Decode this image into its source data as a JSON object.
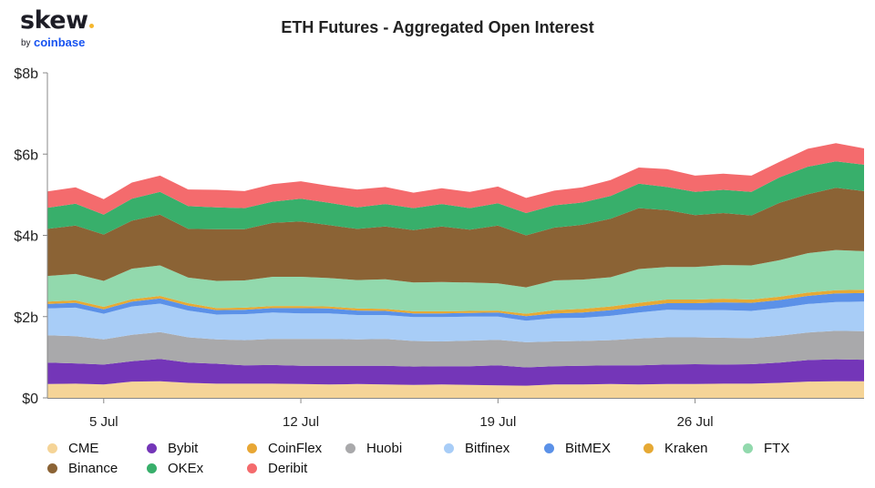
{
  "logo": {
    "brand": "skew",
    "by": "by",
    "partner": "coinbase"
  },
  "chart_data": {
    "type": "area",
    "stacked": true,
    "title": "ETH Futures - Aggregated Open Interest",
    "xlabel": "",
    "ylabel": "",
    "x_start": "2021-07-03",
    "x_ticks": [
      {
        "date": "2021-07-05",
        "label": "5 Jul"
      },
      {
        "date": "2021-07-12",
        "label": "12 Jul"
      },
      {
        "date": "2021-07-19",
        "label": "19 Jul"
      },
      {
        "date": "2021-07-26",
        "label": "26 Jul"
      }
    ],
    "y_ticks": [
      {
        "value": 0,
        "label": "$0"
      },
      {
        "value": 2,
        "label": "$2b"
      },
      {
        "value": 4,
        "label": "$4b"
      },
      {
        "value": 6,
        "label": "$6b"
      },
      {
        "value": 8,
        "label": "$8b"
      }
    ],
    "ylim": [
      0,
      8
    ],
    "y_unit": "USD billions",
    "grid": false,
    "legend_position": "bottom",
    "x": [
      "2021-07-03",
      "2021-07-04",
      "2021-07-05",
      "2021-07-06",
      "2021-07-07",
      "2021-07-08",
      "2021-07-09",
      "2021-07-10",
      "2021-07-11",
      "2021-07-12",
      "2021-07-13",
      "2021-07-14",
      "2021-07-15",
      "2021-07-16",
      "2021-07-17",
      "2021-07-18",
      "2021-07-19",
      "2021-07-20",
      "2021-07-21",
      "2021-07-22",
      "2021-07-23",
      "2021-07-24",
      "2021-07-25",
      "2021-07-26",
      "2021-07-27",
      "2021-07-28",
      "2021-07-29",
      "2021-07-30",
      "2021-07-31",
      "2021-08-01"
    ],
    "series": [
      {
        "name": "CME",
        "color": "#f5d497",
        "values": [
          0.34,
          0.35,
          0.33,
          0.4,
          0.41,
          0.37,
          0.35,
          0.35,
          0.35,
          0.34,
          0.33,
          0.34,
          0.33,
          0.32,
          0.33,
          0.32,
          0.31,
          0.3,
          0.33,
          0.33,
          0.34,
          0.33,
          0.34,
          0.34,
          0.35,
          0.35,
          0.37,
          0.4,
          0.41,
          0.41
        ]
      },
      {
        "name": "Bybit",
        "color": "#7436b8",
        "values": [
          0.53,
          0.5,
          0.49,
          0.5,
          0.55,
          0.5,
          0.49,
          0.45,
          0.46,
          0.45,
          0.46,
          0.45,
          0.46,
          0.45,
          0.45,
          0.46,
          0.49,
          0.45,
          0.45,
          0.46,
          0.46,
          0.47,
          0.48,
          0.49,
          0.47,
          0.48,
          0.5,
          0.53,
          0.54,
          0.53
        ]
      },
      {
        "name": "CoinFlex",
        "color": "#e8a735",
        "values": [
          0.0,
          0.0,
          0.0,
          0.0,
          0.0,
          0.0,
          0.0,
          0.0,
          0.0,
          0.0,
          0.0,
          0.0,
          0.0,
          0.0,
          0.0,
          0.0,
          0.0,
          0.0,
          0.0,
          0.0,
          0.0,
          0.0,
          0.0,
          0.0,
          0.0,
          0.0,
          0.0,
          0.0,
          0.0,
          0.0
        ]
      },
      {
        "name": "Huobi",
        "color": "#a9a9ab",
        "values": [
          0.67,
          0.67,
          0.62,
          0.65,
          0.66,
          0.62,
          0.6,
          0.62,
          0.64,
          0.66,
          0.66,
          0.65,
          0.66,
          0.63,
          0.61,
          0.63,
          0.63,
          0.62,
          0.61,
          0.61,
          0.62,
          0.66,
          0.67,
          0.66,
          0.66,
          0.64,
          0.66,
          0.68,
          0.7,
          0.7
        ]
      },
      {
        "name": "Bitfinex",
        "color": "#a8cdf7",
        "values": [
          0.66,
          0.7,
          0.63,
          0.7,
          0.7,
          0.66,
          0.61,
          0.64,
          0.65,
          0.63,
          0.63,
          0.6,
          0.59,
          0.59,
          0.6,
          0.59,
          0.57,
          0.53,
          0.57,
          0.57,
          0.6,
          0.64,
          0.68,
          0.67,
          0.68,
          0.67,
          0.68,
          0.7,
          0.71,
          0.73
        ]
      },
      {
        "name": "BitMEX",
        "color": "#5b91e8",
        "values": [
          0.11,
          0.12,
          0.11,
          0.12,
          0.13,
          0.12,
          0.11,
          0.11,
          0.11,
          0.13,
          0.12,
          0.11,
          0.1,
          0.09,
          0.09,
          0.09,
          0.1,
          0.11,
          0.12,
          0.13,
          0.14,
          0.15,
          0.16,
          0.17,
          0.19,
          0.2,
          0.2,
          0.2,
          0.21,
          0.21
        ]
      },
      {
        "name": "Kraken",
        "color": "#e6a934",
        "values": [
          0.06,
          0.06,
          0.06,
          0.06,
          0.06,
          0.06,
          0.05,
          0.05,
          0.05,
          0.05,
          0.05,
          0.05,
          0.05,
          0.05,
          0.05,
          0.05,
          0.05,
          0.06,
          0.08,
          0.09,
          0.09,
          0.09,
          0.09,
          0.09,
          0.09,
          0.08,
          0.08,
          0.08,
          0.08,
          0.08
        ]
      },
      {
        "name": "FTX",
        "color": "#92d9ad",
        "values": [
          0.63,
          0.65,
          0.64,
          0.75,
          0.75,
          0.63,
          0.67,
          0.67,
          0.72,
          0.72,
          0.7,
          0.7,
          0.73,
          0.71,
          0.72,
          0.7,
          0.67,
          0.65,
          0.73,
          0.72,
          0.72,
          0.83,
          0.8,
          0.8,
          0.83,
          0.84,
          0.9,
          0.97,
          0.99,
          0.95
        ]
      },
      {
        "name": "Binance",
        "color": "#8b6335",
        "values": [
          1.16,
          1.19,
          1.14,
          1.18,
          1.25,
          1.2,
          1.27,
          1.26,
          1.33,
          1.36,
          1.3,
          1.26,
          1.3,
          1.29,
          1.37,
          1.3,
          1.42,
          1.28,
          1.3,
          1.35,
          1.44,
          1.5,
          1.4,
          1.28,
          1.28,
          1.23,
          1.41,
          1.45,
          1.53,
          1.48
        ]
      },
      {
        "name": "OKEx",
        "color": "#38af6b",
        "values": [
          0.52,
          0.54,
          0.49,
          0.54,
          0.56,
          0.56,
          0.54,
          0.52,
          0.52,
          0.56,
          0.55,
          0.53,
          0.55,
          0.54,
          0.55,
          0.53,
          0.55,
          0.55,
          0.55,
          0.55,
          0.56,
          0.6,
          0.57,
          0.57,
          0.57,
          0.58,
          0.63,
          0.68,
          0.65,
          0.65
        ]
      },
      {
        "name": "Deribit",
        "color": "#f46b6d",
        "values": [
          0.4,
          0.4,
          0.38,
          0.4,
          0.4,
          0.41,
          0.43,
          0.42,
          0.43,
          0.43,
          0.42,
          0.44,
          0.42,
          0.38,
          0.39,
          0.4,
          0.41,
          0.37,
          0.36,
          0.37,
          0.39,
          0.4,
          0.44,
          0.4,
          0.4,
          0.4,
          0.38,
          0.44,
          0.45,
          0.4
        ]
      }
    ]
  }
}
